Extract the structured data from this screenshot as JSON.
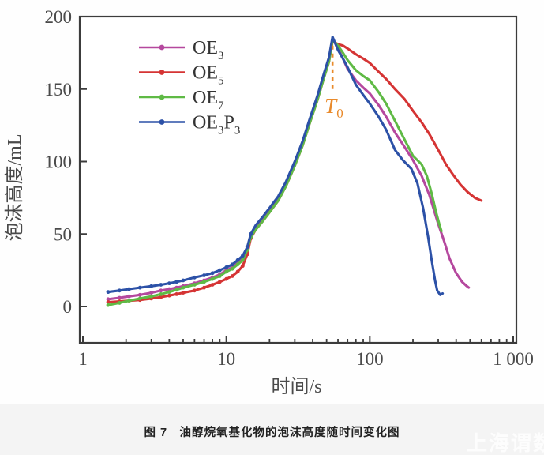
{
  "page": {
    "background": "#ffffff",
    "caption_strip_bg": "#f4f4f4",
    "axis_color": "#3c3c3c",
    "tick_label_color": "#4a4a4a"
  },
  "caption": {
    "text": "图 7　油醇烷氧基化物的泡沫高度随时间变化图"
  },
  "watermark": {
    "text": "上海谓数",
    "color": "#ffffff"
  },
  "chart_data": {
    "type": "line",
    "title": "",
    "xlabel": "时间/s",
    "ylabel": "泡沫高度/mL",
    "x_scale": "log",
    "xlim": [
      1,
      1000
    ],
    "ylim": [
      -25,
      200
    ],
    "grid": false,
    "legend_position": "upper-left-inside",
    "x_ticks": [
      {
        "value": 1,
        "label": "1"
      },
      {
        "value": 10,
        "label": "10"
      },
      {
        "value": 100,
        "label": "100"
      },
      {
        "value": 1000,
        "label": "1 000"
      }
    ],
    "y_ticks": [
      {
        "value": 0,
        "label": "0"
      },
      {
        "value": 50,
        "label": "50"
      },
      {
        "value": 100,
        "label": "100"
      },
      {
        "value": 150,
        "label": "150"
      },
      {
        "value": 200,
        "label": "200"
      }
    ],
    "annotation": {
      "label_main": "T",
      "label_sub": "0",
      "t": 55,
      "color": "#e98a2b",
      "dash_from_h": 180,
      "dash_to_h": 150,
      "note": "dashed vertical line marking peak time"
    },
    "series": [
      {
        "name": "OE3",
        "label_parts": [
          [
            "OE",
            "3"
          ]
        ],
        "color": "#b5489e",
        "points": [
          [
            1.5,
            5
          ],
          [
            1.8,
            6
          ],
          [
            2.1,
            7
          ],
          [
            2.5,
            8
          ],
          [
            3,
            9.5
          ],
          [
            3.5,
            11
          ],
          [
            4,
            12
          ],
          [
            4.5,
            13
          ],
          [
            5,
            14
          ],
          [
            6,
            16
          ],
          [
            7,
            18
          ],
          [
            8,
            20
          ],
          [
            9,
            22
          ],
          [
            10,
            25
          ],
          [
            11,
            27
          ],
          [
            12,
            30
          ],
          [
            13,
            33
          ],
          [
            14,
            40
          ],
          [
            14.8,
            48
          ],
          [
            16,
            54
          ],
          [
            18,
            60
          ],
          [
            20,
            66
          ],
          [
            23,
            74
          ],
          [
            26,
            84
          ],
          [
            30,
            98
          ],
          [
            34,
            112
          ],
          [
            38,
            127
          ],
          [
            43,
            143
          ],
          [
            48,
            159
          ],
          [
            52,
            170
          ],
          [
            55,
            185
          ],
          [
            60,
            178
          ],
          [
            65,
            171
          ],
          [
            70,
            164
          ],
          [
            80,
            156
          ],
          [
            90,
            151
          ],
          [
            100,
            147
          ],
          [
            115,
            139
          ],
          [
            130,
            131
          ],
          [
            150,
            120
          ],
          [
            175,
            110
          ],
          [
            200,
            101
          ],
          [
            230,
            90
          ],
          [
            260,
            77
          ],
          [
            300,
            57
          ],
          [
            330,
            45
          ],
          [
            360,
            33
          ],
          [
            400,
            23
          ],
          [
            440,
            17
          ],
          [
            475,
            14
          ],
          [
            490,
            13
          ]
        ]
      },
      {
        "name": "OE5",
        "label_parts": [
          [
            "OE",
            "5"
          ]
        ],
        "color": "#d53434",
        "points": [
          [
            1.5,
            3
          ],
          [
            1.8,
            3.5
          ],
          [
            2.1,
            4
          ],
          [
            2.5,
            4.5
          ],
          [
            3,
            5.5
          ],
          [
            3.5,
            6.5
          ],
          [
            4,
            7.5
          ],
          [
            4.5,
            8.5
          ],
          [
            5,
            9.5
          ],
          [
            6,
            11
          ],
          [
            7,
            13
          ],
          [
            8,
            15
          ],
          [
            9,
            17
          ],
          [
            10,
            19
          ],
          [
            11,
            21
          ],
          [
            12,
            24
          ],
          [
            13,
            28
          ],
          [
            14,
            36
          ],
          [
            14.8,
            47
          ],
          [
            16,
            53
          ],
          [
            18,
            59
          ],
          [
            20,
            65
          ],
          [
            23,
            73
          ],
          [
            26,
            83
          ],
          [
            30,
            97
          ],
          [
            34,
            111
          ],
          [
            38,
            126
          ],
          [
            43,
            142
          ],
          [
            48,
            158
          ],
          [
            52,
            169
          ],
          [
            55,
            183
          ],
          [
            60,
            181
          ],
          [
            65,
            180
          ],
          [
            70,
            178
          ],
          [
            80,
            174
          ],
          [
            90,
            171
          ],
          [
            100,
            168
          ],
          [
            115,
            162
          ],
          [
            130,
            157
          ],
          [
            150,
            150
          ],
          [
            175,
            143
          ],
          [
            200,
            135
          ],
          [
            230,
            127
          ],
          [
            260,
            119
          ],
          [
            300,
            108
          ],
          [
            340,
            98
          ],
          [
            380,
            91
          ],
          [
            430,
            84
          ],
          [
            480,
            79
          ],
          [
            540,
            75
          ],
          [
            600,
            73
          ]
        ]
      },
      {
        "name": "OE7",
        "label_parts": [
          [
            "OE",
            "7"
          ]
        ],
        "color": "#5fba45",
        "points": [
          [
            1.5,
            1
          ],
          [
            1.8,
            2.5
          ],
          [
            2.1,
            4
          ],
          [
            2.5,
            5.5
          ],
          [
            3,
            7
          ],
          [
            3.5,
            8.5
          ],
          [
            4,
            10
          ],
          [
            4.5,
            11.5
          ],
          [
            5,
            13
          ],
          [
            6,
            15
          ],
          [
            7,
            17
          ],
          [
            8,
            19
          ],
          [
            9,
            21
          ],
          [
            10,
            24
          ],
          [
            11,
            26
          ],
          [
            12,
            29
          ],
          [
            13,
            32
          ],
          [
            14,
            39
          ],
          [
            14.8,
            48
          ],
          [
            16,
            53
          ],
          [
            18,
            59
          ],
          [
            20,
            65
          ],
          [
            23,
            73
          ],
          [
            26,
            83
          ],
          [
            30,
            97
          ],
          [
            34,
            111
          ],
          [
            38,
            126
          ],
          [
            43,
            142
          ],
          [
            48,
            158
          ],
          [
            52,
            169
          ],
          [
            55,
            184
          ],
          [
            60,
            180
          ],
          [
            65,
            175
          ],
          [
            70,
            170
          ],
          [
            80,
            163
          ],
          [
            90,
            159
          ],
          [
            100,
            156
          ],
          [
            115,
            148
          ],
          [
            130,
            140
          ],
          [
            150,
            128
          ],
          [
            175,
            115
          ],
          [
            200,
            104
          ],
          [
            230,
            98
          ],
          [
            250,
            90
          ],
          [
            270,
            78
          ],
          [
            290,
            65
          ],
          [
            305,
            57
          ],
          [
            316,
            52
          ]
        ]
      },
      {
        "name": "OE3P3",
        "label_parts": [
          [
            "OE",
            "3"
          ],
          [
            "P",
            "3"
          ]
        ],
        "color": "#2c51a7",
        "points": [
          [
            1.5,
            10
          ],
          [
            1.8,
            11
          ],
          [
            2.1,
            12
          ],
          [
            2.5,
            13
          ],
          [
            3,
            14
          ],
          [
            3.5,
            15
          ],
          [
            4,
            16
          ],
          [
            4.5,
            17
          ],
          [
            5,
            18
          ],
          [
            6,
            20
          ],
          [
            7,
            21.5
          ],
          [
            8,
            23
          ],
          [
            9,
            25
          ],
          [
            10,
            27
          ],
          [
            11,
            29
          ],
          [
            12,
            32
          ],
          [
            13,
            35
          ],
          [
            14,
            41
          ],
          [
            14.8,
            50
          ],
          [
            16,
            56
          ],
          [
            18,
            62
          ],
          [
            20,
            68
          ],
          [
            23,
            76
          ],
          [
            26,
            86
          ],
          [
            30,
            100
          ],
          [
            34,
            114
          ],
          [
            38,
            129
          ],
          [
            43,
            145
          ],
          [
            48,
            161
          ],
          [
            52,
            172
          ],
          [
            55,
            186
          ],
          [
            60,
            177
          ],
          [
            65,
            171
          ],
          [
            70,
            165
          ],
          [
            80,
            153
          ],
          [
            90,
            146
          ],
          [
            100,
            140
          ],
          [
            115,
            131
          ],
          [
            130,
            122
          ],
          [
            150,
            108
          ],
          [
            170,
            101
          ],
          [
            195,
            95
          ],
          [
            215,
            85
          ],
          [
            235,
            68
          ],
          [
            255,
            48
          ],
          [
            270,
            32
          ],
          [
            285,
            18
          ],
          [
            295,
            11
          ],
          [
            310,
            8
          ],
          [
            322,
            9
          ]
        ]
      }
    ]
  }
}
